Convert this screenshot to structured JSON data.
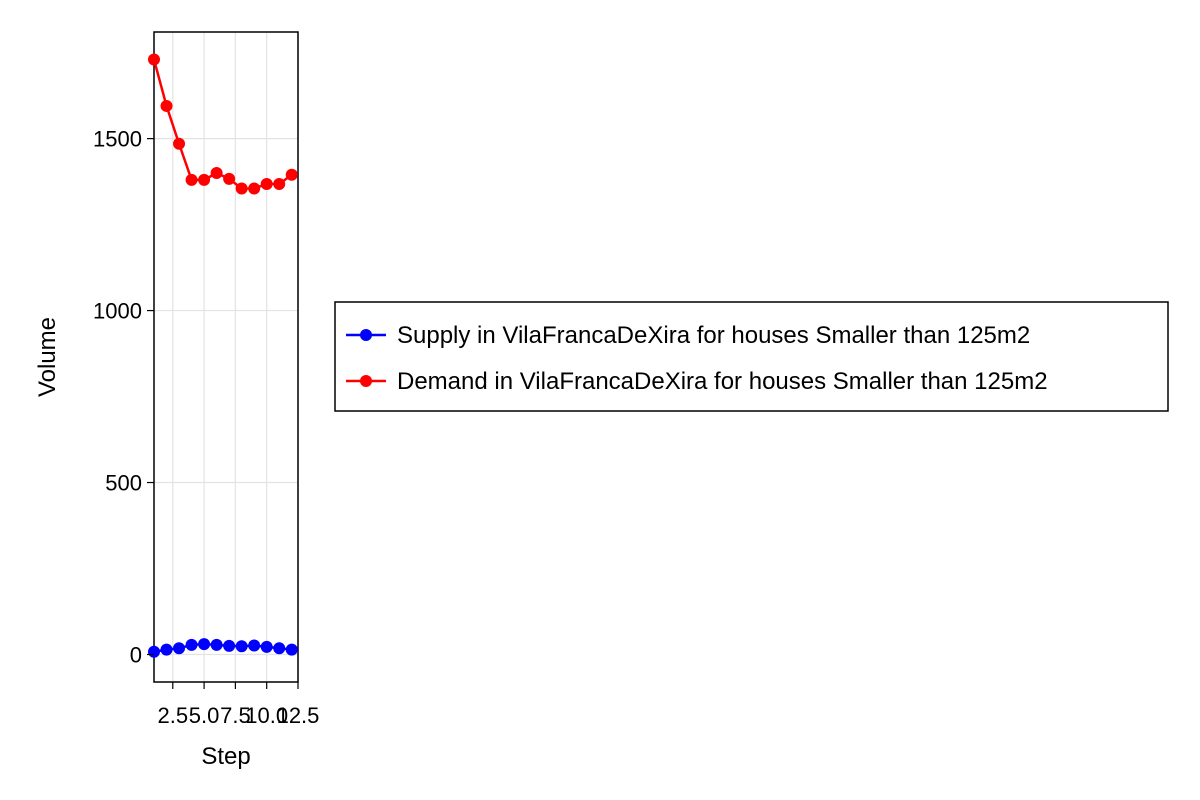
{
  "chart_data": {
    "type": "line",
    "title": "",
    "xlabel": "Step",
    "ylabel": "Volume",
    "xlim": [
      1,
      12.5
    ],
    "ylim": [
      -80,
      1810
    ],
    "x_ticks": [
      2.5,
      5.0,
      7.5,
      10.0,
      12.5
    ],
    "x_tick_labels": [
      "2.5",
      "5.0",
      "7.5",
      "10.0",
      "12.5"
    ],
    "y_ticks": [
      0,
      500,
      1000,
      1500
    ],
    "y_tick_labels": [
      "0",
      "500",
      "1000",
      "1500"
    ],
    "grid": true,
    "legend_position": "right",
    "x": [
      1,
      2,
      3,
      4,
      5,
      6,
      7,
      8,
      9,
      10,
      11,
      12
    ],
    "series": [
      {
        "name": "Supply in VilaFrancaDeXira for houses Smaller than 125m2",
        "color": "#0000ff",
        "values": [
          8,
          14,
          18,
          28,
          30,
          28,
          25,
          24,
          26,
          22,
          18,
          14
        ]
      },
      {
        "name": "Demand in VilaFrancaDeXira for houses Smaller than 125m2",
        "color": "#ff0000",
        "values": [
          1730,
          1595,
          1485,
          1380,
          1380,
          1400,
          1383,
          1355,
          1355,
          1368,
          1368,
          1395
        ]
      }
    ]
  }
}
